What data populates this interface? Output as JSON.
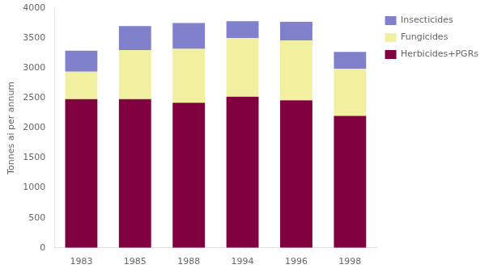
{
  "chart_data": {
    "type": "bar",
    "stacked": true,
    "categories": [
      "1983",
      "1985",
      "1988",
      "1994",
      "1996",
      "1998"
    ],
    "series": [
      {
        "name": "Herbicides+PGRs",
        "color": "#800040",
        "values": [
          2480,
          2480,
          2420,
          2520,
          2460,
          2200
        ]
      },
      {
        "name": "Fungicides",
        "color": "#f0f0a0",
        "values": [
          460,
          820,
          900,
          980,
          1000,
          790
        ]
      },
      {
        "name": "Insecticides",
        "color": "#8080cc",
        "values": [
          350,
          400,
          430,
          280,
          310,
          280
        ]
      }
    ],
    "ylabel": "Tonnes ai per annum",
    "ylim": [
      0,
      4000
    ],
    "yticks": [
      0,
      500,
      1000,
      1500,
      2000,
      2500,
      3000,
      3500,
      4000
    ],
    "grid": false,
    "legend": "right"
  }
}
